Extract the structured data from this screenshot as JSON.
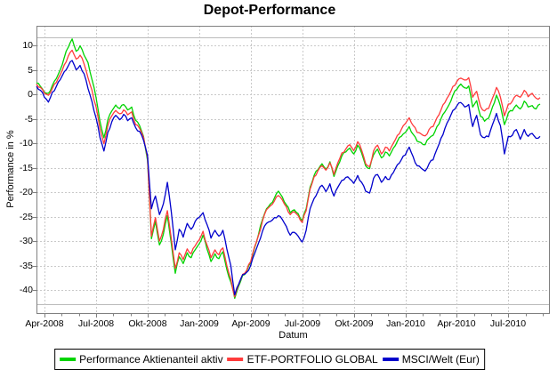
{
  "chart_data": {
    "type": "line",
    "title": "Depot-Performance",
    "xlabel": "Datum",
    "ylabel": "Performance in %",
    "x_ticks": [
      "Apr-2008",
      "Jul-2008",
      "Okt-2008",
      "Jan-2009",
      "Apr-2009",
      "Jul-2009",
      "Okt-2009",
      "Jan-2010",
      "Apr-2010",
      "Jul-2010"
    ],
    "x_tick_month_offsets": [
      0,
      3,
      6,
      9,
      12,
      15,
      18,
      21,
      24,
      27
    ],
    "x_note": "weekly samples, late Mar 2008 to early Sep 2010",
    "y_ticks": [
      10,
      5,
      0,
      -5,
      -10,
      -15,
      -20,
      -25,
      -30,
      -35,
      -40
    ],
    "ylim": [
      -44.9,
      14.0
    ],
    "grid": "dashed-gray",
    "legend_position": "bottom-center",
    "series": [
      {
        "name": "Performance Aktienanteil aktiv",
        "color": "#00D400",
        "values": [
          2.3,
          1.6,
          0.4,
          0.2,
          1.8,
          3.2,
          5.0,
          7.5,
          9.6,
          11.3,
          8.8,
          9.9,
          8.0,
          6.5,
          3.0,
          -0.6,
          -5.5,
          -8.9,
          -5.2,
          -3.4,
          -2.2,
          -2.9,
          -2.1,
          -3.2,
          -2.6,
          -5.3,
          -6.4,
          -8.6,
          -13.5,
          -29.5,
          -26.0,
          -30.8,
          -28.6,
          -24.8,
          -30.5,
          -36.6,
          -33.2,
          -34.6,
          -32.4,
          -33.4,
          -31.8,
          -30.6,
          -28.8,
          -31.6,
          -34.2,
          -32.6,
          -33.6,
          -32.2,
          -35.8,
          -38.4,
          -41.7,
          -39.2,
          -37.0,
          -36.2,
          -34.4,
          -31.4,
          -28.6,
          -25.6,
          -23.4,
          -22.4,
          -21.2,
          -19.8,
          -21.0,
          -22.6,
          -24.2,
          -23.6,
          -24.4,
          -25.8,
          -23.4,
          -19.0,
          -16.6,
          -15.4,
          -14.2,
          -15.3,
          -13.8,
          -16.8,
          -14.6,
          -12.6,
          -11.8,
          -11.0,
          -12.2,
          -10.4,
          -12.0,
          -14.6,
          -15.2,
          -12.4,
          -11.2,
          -13.0,
          -11.8,
          -12.6,
          -11.0,
          -9.6,
          -8.6,
          -7.8,
          -6.6,
          -8.2,
          -9.6,
          -9.9,
          -10.3,
          -9.0,
          -8.4,
          -6.6,
          -5.0,
          -3.6,
          -2.2,
          -0.2,
          1.0,
          2.1,
          1.3,
          1.7,
          -2.6,
          -1.3,
          -4.5,
          -5.5,
          -4.9,
          -2.6,
          -0.2,
          -2.4,
          -6.2,
          -3.8,
          -3.4,
          -2.2,
          -3.0,
          -1.4,
          -2.6,
          -2.3,
          -3.0,
          -2.0
        ]
      },
      {
        "name": "ETF-PORTFOLIO GLOBAL",
        "color": "#FF3B3B",
        "values": [
          2.1,
          1.4,
          0.2,
          -0.2,
          1.2,
          2.4,
          4.0,
          6.0,
          7.8,
          9.0,
          7.2,
          8.0,
          6.2,
          3.4,
          0.8,
          -2.5,
          -7.0,
          -10.1,
          -6.4,
          -4.4,
          -3.3,
          -4.0,
          -3.2,
          -4.2,
          -3.6,
          -6.2,
          -7.0,
          -8.8,
          -13.0,
          -29.0,
          -25.2,
          -30.0,
          -27.6,
          -23.8,
          -29.5,
          -35.6,
          -32.4,
          -33.8,
          -31.6,
          -32.6,
          -31.0,
          -29.8,
          -28.0,
          -30.8,
          -33.4,
          -31.8,
          -32.8,
          -31.4,
          -35.0,
          -37.8,
          -41.4,
          -38.9,
          -36.8,
          -36.0,
          -34.2,
          -31.2,
          -28.8,
          -25.9,
          -23.6,
          -22.8,
          -21.8,
          -20.7,
          -21.6,
          -23.0,
          -24.6,
          -24.0,
          -24.8,
          -26.2,
          -23.8,
          -19.4,
          -16.9,
          -15.6,
          -14.6,
          -15.5,
          -14.0,
          -16.4,
          -14.0,
          -12.0,
          -11.2,
          -10.3,
          -11.5,
          -9.7,
          -11.4,
          -14.2,
          -14.8,
          -11.6,
          -10.4,
          -12.2,
          -10.8,
          -11.6,
          -10.0,
          -8.4,
          -7.2,
          -6.0,
          -4.8,
          -6.4,
          -7.8,
          -8.1,
          -8.5,
          -7.2,
          -6.6,
          -4.8,
          -3.2,
          -1.7,
          -0.2,
          1.6,
          2.6,
          3.3,
          2.9,
          3.4,
          -0.6,
          0.6,
          -2.5,
          -3.4,
          -2.9,
          -0.8,
          1.4,
          -0.6,
          -4.4,
          -2.0,
          -1.4,
          -0.2,
          -0.6,
          0.8,
          -0.5,
          0.2,
          -0.8,
          -0.7
        ]
      },
      {
        "name": "MSCI/Welt (Eur)",
        "color": "#0000CC",
        "values": [
          1.6,
          0.8,
          -0.6,
          -1.6,
          0.4,
          1.6,
          3.0,
          4.6,
          5.8,
          6.9,
          5.0,
          5.9,
          4.2,
          1.2,
          -1.5,
          -4.8,
          -8.8,
          -11.6,
          -7.8,
          -5.6,
          -4.3,
          -5.2,
          -4.1,
          -5.4,
          -4.8,
          -6.8,
          -7.6,
          -9.4,
          -12.5,
          -23.4,
          -20.8,
          -24.6,
          -22.4,
          -18.0,
          -24.0,
          -31.8,
          -27.6,
          -29.2,
          -26.4,
          -27.6,
          -26.0,
          -25.2,
          -24.2,
          -26.6,
          -29.4,
          -27.8,
          -29.0,
          -27.8,
          -31.6,
          -35.0,
          -41.0,
          -38.8,
          -36.9,
          -36.4,
          -35.0,
          -32.6,
          -30.4,
          -28.0,
          -26.4,
          -26.0,
          -25.2,
          -24.8,
          -25.6,
          -27.0,
          -28.8,
          -28.2,
          -29.0,
          -30.2,
          -27.8,
          -23.4,
          -21.3,
          -19.8,
          -18.6,
          -19.9,
          -18.3,
          -20.8,
          -19.0,
          -17.6,
          -17.0,
          -17.3,
          -18.2,
          -16.6,
          -18.0,
          -19.8,
          -20.2,
          -17.2,
          -16.4,
          -18.0,
          -16.8,
          -17.4,
          -16.0,
          -14.4,
          -13.4,
          -12.4,
          -10.8,
          -12.8,
          -14.6,
          -15.1,
          -15.7,
          -14.2,
          -13.4,
          -11.2,
          -9.0,
          -7.0,
          -5.2,
          -3.3,
          -2.4,
          -1.7,
          -2.6,
          -2.1,
          -6.6,
          -4.3,
          -8.3,
          -8.9,
          -8.7,
          -6.2,
          -3.9,
          -6.4,
          -12.2,
          -8.6,
          -8.4,
          -7.2,
          -9.2,
          -7.2,
          -8.6,
          -8.0,
          -9.0,
          -8.6
        ]
      }
    ]
  },
  "colors": {
    "grid_dashed": "#C9C9C9",
    "grid_solid_bounds": "#BBBBBB",
    "plot_border": "#808080",
    "background": "#FFFFFF"
  }
}
